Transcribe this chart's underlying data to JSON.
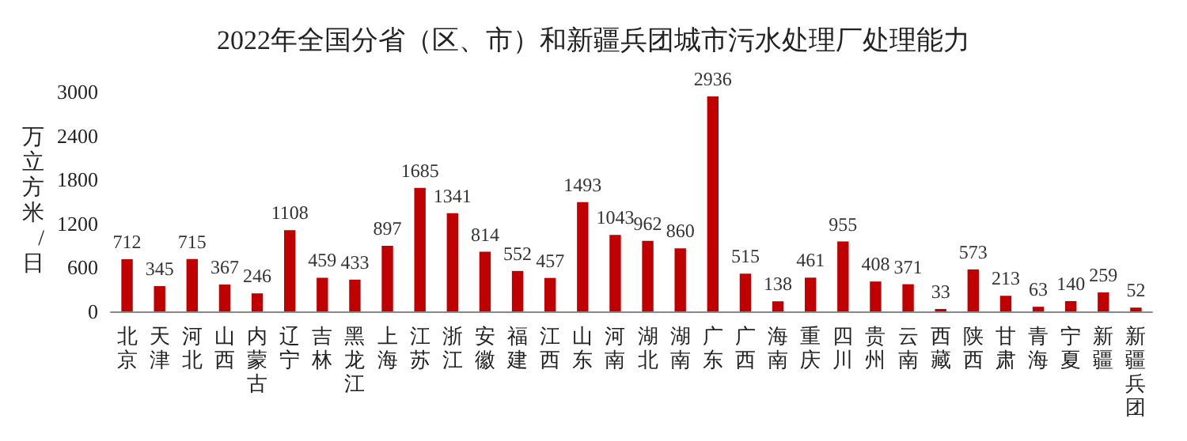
{
  "chart_data": {
    "type": "bar",
    "title": "2022年全国分省（区、市）和新疆兵团城市污水处理厂处理能力",
    "ylabel": "万立方米/日",
    "categories": [
      "北京",
      "天津",
      "河北",
      "山西",
      "内蒙古",
      "辽宁",
      "吉林",
      "黑龙江",
      "上海",
      "江苏",
      "浙江",
      "安徽",
      "福建",
      "江西",
      "山东",
      "河南",
      "湖北",
      "湖南",
      "广东",
      "广西",
      "海南",
      "重庆",
      "四川",
      "贵州",
      "云南",
      "西藏",
      "陕西",
      "甘肃",
      "青海",
      "宁夏",
      "新疆",
      "新疆兵团"
    ],
    "values": [
      712,
      345,
      715,
      367,
      246,
      1108,
      459,
      433,
      897,
      1685,
      1341,
      814,
      552,
      457,
      1493,
      1043,
      962,
      860,
      2936,
      515,
      138,
      461,
      955,
      408,
      371,
      33,
      573,
      213,
      63,
      140,
      259,
      52
    ],
    "color": "#c00000",
    "ylim": [
      0,
      3000
    ],
    "yticks": [
      0,
      600,
      1200,
      1800,
      2400,
      3000
    ],
    "grid": false,
    "data_labels": true
  }
}
